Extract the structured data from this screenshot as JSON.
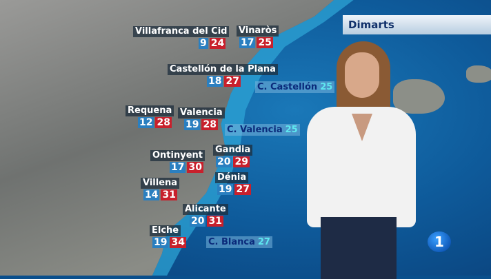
{
  "day": "Dimarts",
  "channel_logo": "1",
  "colors": {
    "min_temp": "#2a7fc0",
    "max_temp": "#c8202c",
    "sea_temp": "#5ee8f0"
  },
  "cities": [
    {
      "name": "Villafranca del Cid",
      "min": "9",
      "max": "24"
    },
    {
      "name": "Vinaròs",
      "min": "17",
      "max": "25"
    },
    {
      "name": "Castellón de la Plana",
      "min": "18",
      "max": "27"
    },
    {
      "name": "Requena",
      "min": "12",
      "max": "28"
    },
    {
      "name": "Valencia",
      "min": "19",
      "max": "28"
    },
    {
      "name": "Ontinyent",
      "min": "17",
      "max": "30"
    },
    {
      "name": "Gandia",
      "min": "20",
      "max": "29"
    },
    {
      "name": "Villena",
      "min": "14",
      "max": "31"
    },
    {
      "name": "Dénia",
      "min": "19",
      "max": "27"
    },
    {
      "name": "Alicante",
      "min": "20",
      "max": "31"
    },
    {
      "name": "Elche",
      "min": "19",
      "max": "34"
    }
  ],
  "sea": [
    {
      "name": "C. Castellón",
      "temp": "25"
    },
    {
      "name": "C. Valencia",
      "temp": "25"
    },
    {
      "name": "C. Blanca",
      "temp": "27"
    }
  ]
}
